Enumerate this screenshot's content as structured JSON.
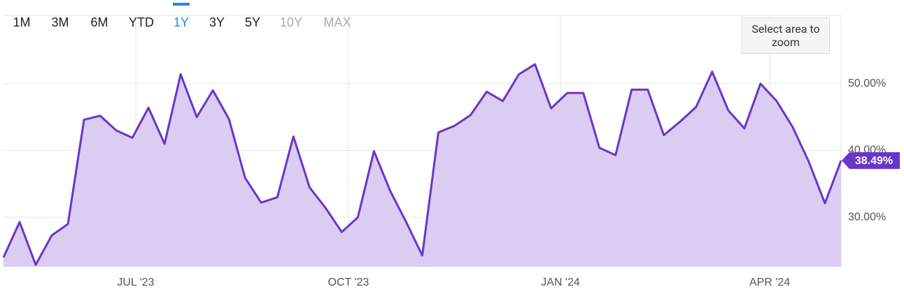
{
  "chart_data": {
    "type": "area",
    "range_buttons": [
      {
        "label": "1M",
        "state": "normal"
      },
      {
        "label": "3M",
        "state": "normal"
      },
      {
        "label": "6M",
        "state": "normal"
      },
      {
        "label": "YTD",
        "state": "normal"
      },
      {
        "label": "1Y",
        "state": "active"
      },
      {
        "label": "3Y",
        "state": "normal"
      },
      {
        "label": "5Y",
        "state": "normal"
      },
      {
        "label": "10Y",
        "state": "disabled"
      },
      {
        "label": "MAX",
        "state": "disabled"
      }
    ],
    "zoom_hint": "Select area to zoom",
    "values": [
      24.0,
      29.3,
      22.9,
      27.3,
      29.0,
      44.6,
      45.2,
      43.0,
      41.9,
      46.4,
      41.0,
      51.4,
      45.0,
      49.0,
      44.7,
      35.9,
      32.2,
      33.0,
      42.1,
      34.5,
      31.4,
      27.8,
      30.0,
      39.9,
      34.0,
      29.3,
      24.3,
      42.7,
      43.7,
      45.3,
      48.8,
      47.4,
      51.4,
      52.9,
      46.3,
      48.6,
      48.6,
      40.4,
      39.3,
      49.1,
      49.1,
      42.3,
      44.3,
      46.5,
      51.8,
      46.0,
      43.3,
      50.0,
      47.4,
      43.5,
      38.3,
      32.1,
      38.49
    ],
    "value_labels": [
      null,
      null,
      null,
      null,
      null,
      null,
      null,
      null,
      null,
      null,
      null,
      null,
      null,
      null,
      null,
      null,
      null,
      null,
      null,
      null,
      null,
      null,
      null,
      null,
      null,
      null,
      null,
      null,
      null,
      null,
      null,
      null,
      null,
      null,
      null,
      null,
      null,
      null,
      null,
      null,
      null,
      null,
      null,
      null,
      null,
      null,
      null,
      null,
      null,
      null,
      null,
      null,
      "38.49%"
    ],
    "color": "#6a35c9",
    "fill_color": "#dacdf1",
    "xlim": [
      0,
      52
    ],
    "xticks": [
      {
        "value": 8.21,
        "label": "JUL '23"
      },
      {
        "value": 21.42,
        "label": "OCT '23"
      },
      {
        "value": 34.58,
        "label": "JAN '24"
      },
      {
        "value": 47.57,
        "label": "APR '24"
      }
    ],
    "ylim": [
      22.6,
      59.8
    ],
    "yticks": [
      {
        "value": 30,
        "label": "30.00%"
      },
      {
        "value": 40,
        "label": "40.00%"
      },
      {
        "value": 50,
        "label": "50.00%"
      }
    ],
    "grid": true
  }
}
